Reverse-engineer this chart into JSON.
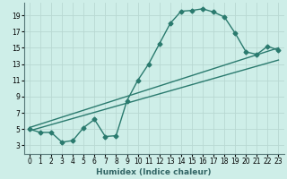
{
  "xlabel": "Humidex (Indice chaleur)",
  "ylabel": "",
  "bg_color": "#ceeee8",
  "grid_color": "#b8d8d2",
  "line_color": "#2a7a6e",
  "xlim": [
    -0.5,
    23.5
  ],
  "ylim": [
    2,
    20.5
  ],
  "xticks": [
    0,
    1,
    2,
    3,
    4,
    5,
    6,
    7,
    8,
    9,
    10,
    11,
    12,
    13,
    14,
    15,
    16,
    17,
    18,
    19,
    20,
    21,
    22,
    23
  ],
  "yticks": [
    3,
    5,
    7,
    9,
    11,
    13,
    15,
    17,
    19
  ],
  "line1_x": [
    0,
    1,
    2,
    3,
    4,
    5,
    6,
    7,
    8,
    9,
    10,
    11,
    12,
    13,
    14,
    15,
    16,
    17,
    18,
    19,
    20,
    21,
    22,
    23
  ],
  "line1_y": [
    5,
    4.6,
    4.6,
    3.4,
    3.6,
    5.2,
    6.2,
    4.1,
    4.2,
    8.5,
    11.0,
    13.0,
    15.5,
    18.0,
    19.5,
    19.6,
    19.8,
    19.4,
    18.8,
    16.8,
    14.5,
    14.2,
    15.2,
    14.7
  ],
  "line2_x": [
    0,
    23
  ],
  "line2_y": [
    5.2,
    15.0
  ],
  "line3_x": [
    0,
    23
  ],
  "line3_y": [
    4.8,
    13.5
  ],
  "markersize": 2.5,
  "linewidth": 1.0,
  "tick_fontsize": 5.5,
  "xlabel_fontsize": 6.5
}
